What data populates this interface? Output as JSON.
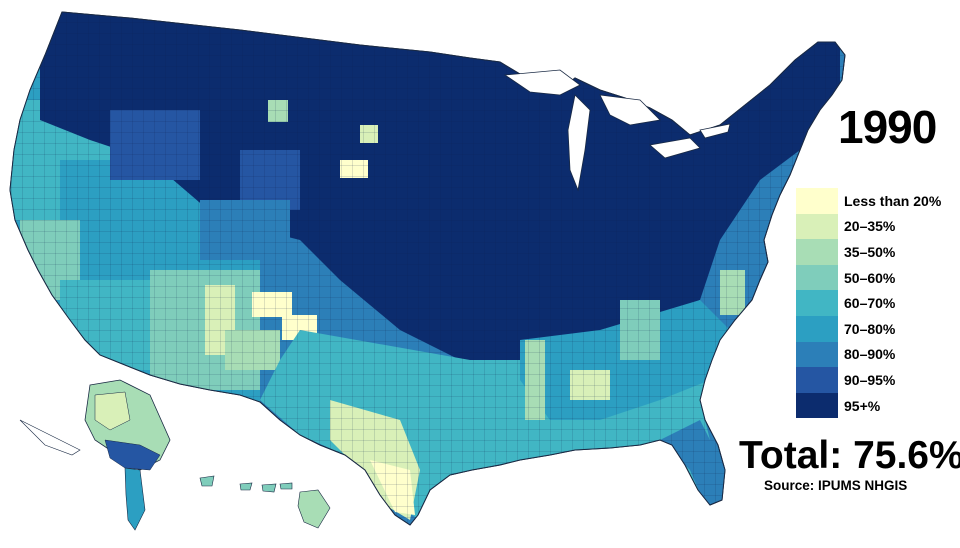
{
  "map": {
    "year": "1990",
    "total": "Total: 75.6%",
    "source": "Source: IPUMS NHGIS",
    "legend": [
      {
        "label": "Less than 20%",
        "color": "#ffffcc"
      },
      {
        "label": "20–35%",
        "color": "#d9f0b8"
      },
      {
        "label": "35–50%",
        "color": "#a8ddb5"
      },
      {
        "label": "50–60%",
        "color": "#7fcdbb"
      },
      {
        "label": "60–70%",
        "color": "#41b6c4"
      },
      {
        "label": "70–80%",
        "color": "#2c9fc2"
      },
      {
        "label": "80–90%",
        "color": "#2c7fb8"
      },
      {
        "label": "90–95%",
        "color": "#2556a3"
      },
      {
        "label": "95+%",
        "color": "#0c2c6e"
      }
    ]
  }
}
